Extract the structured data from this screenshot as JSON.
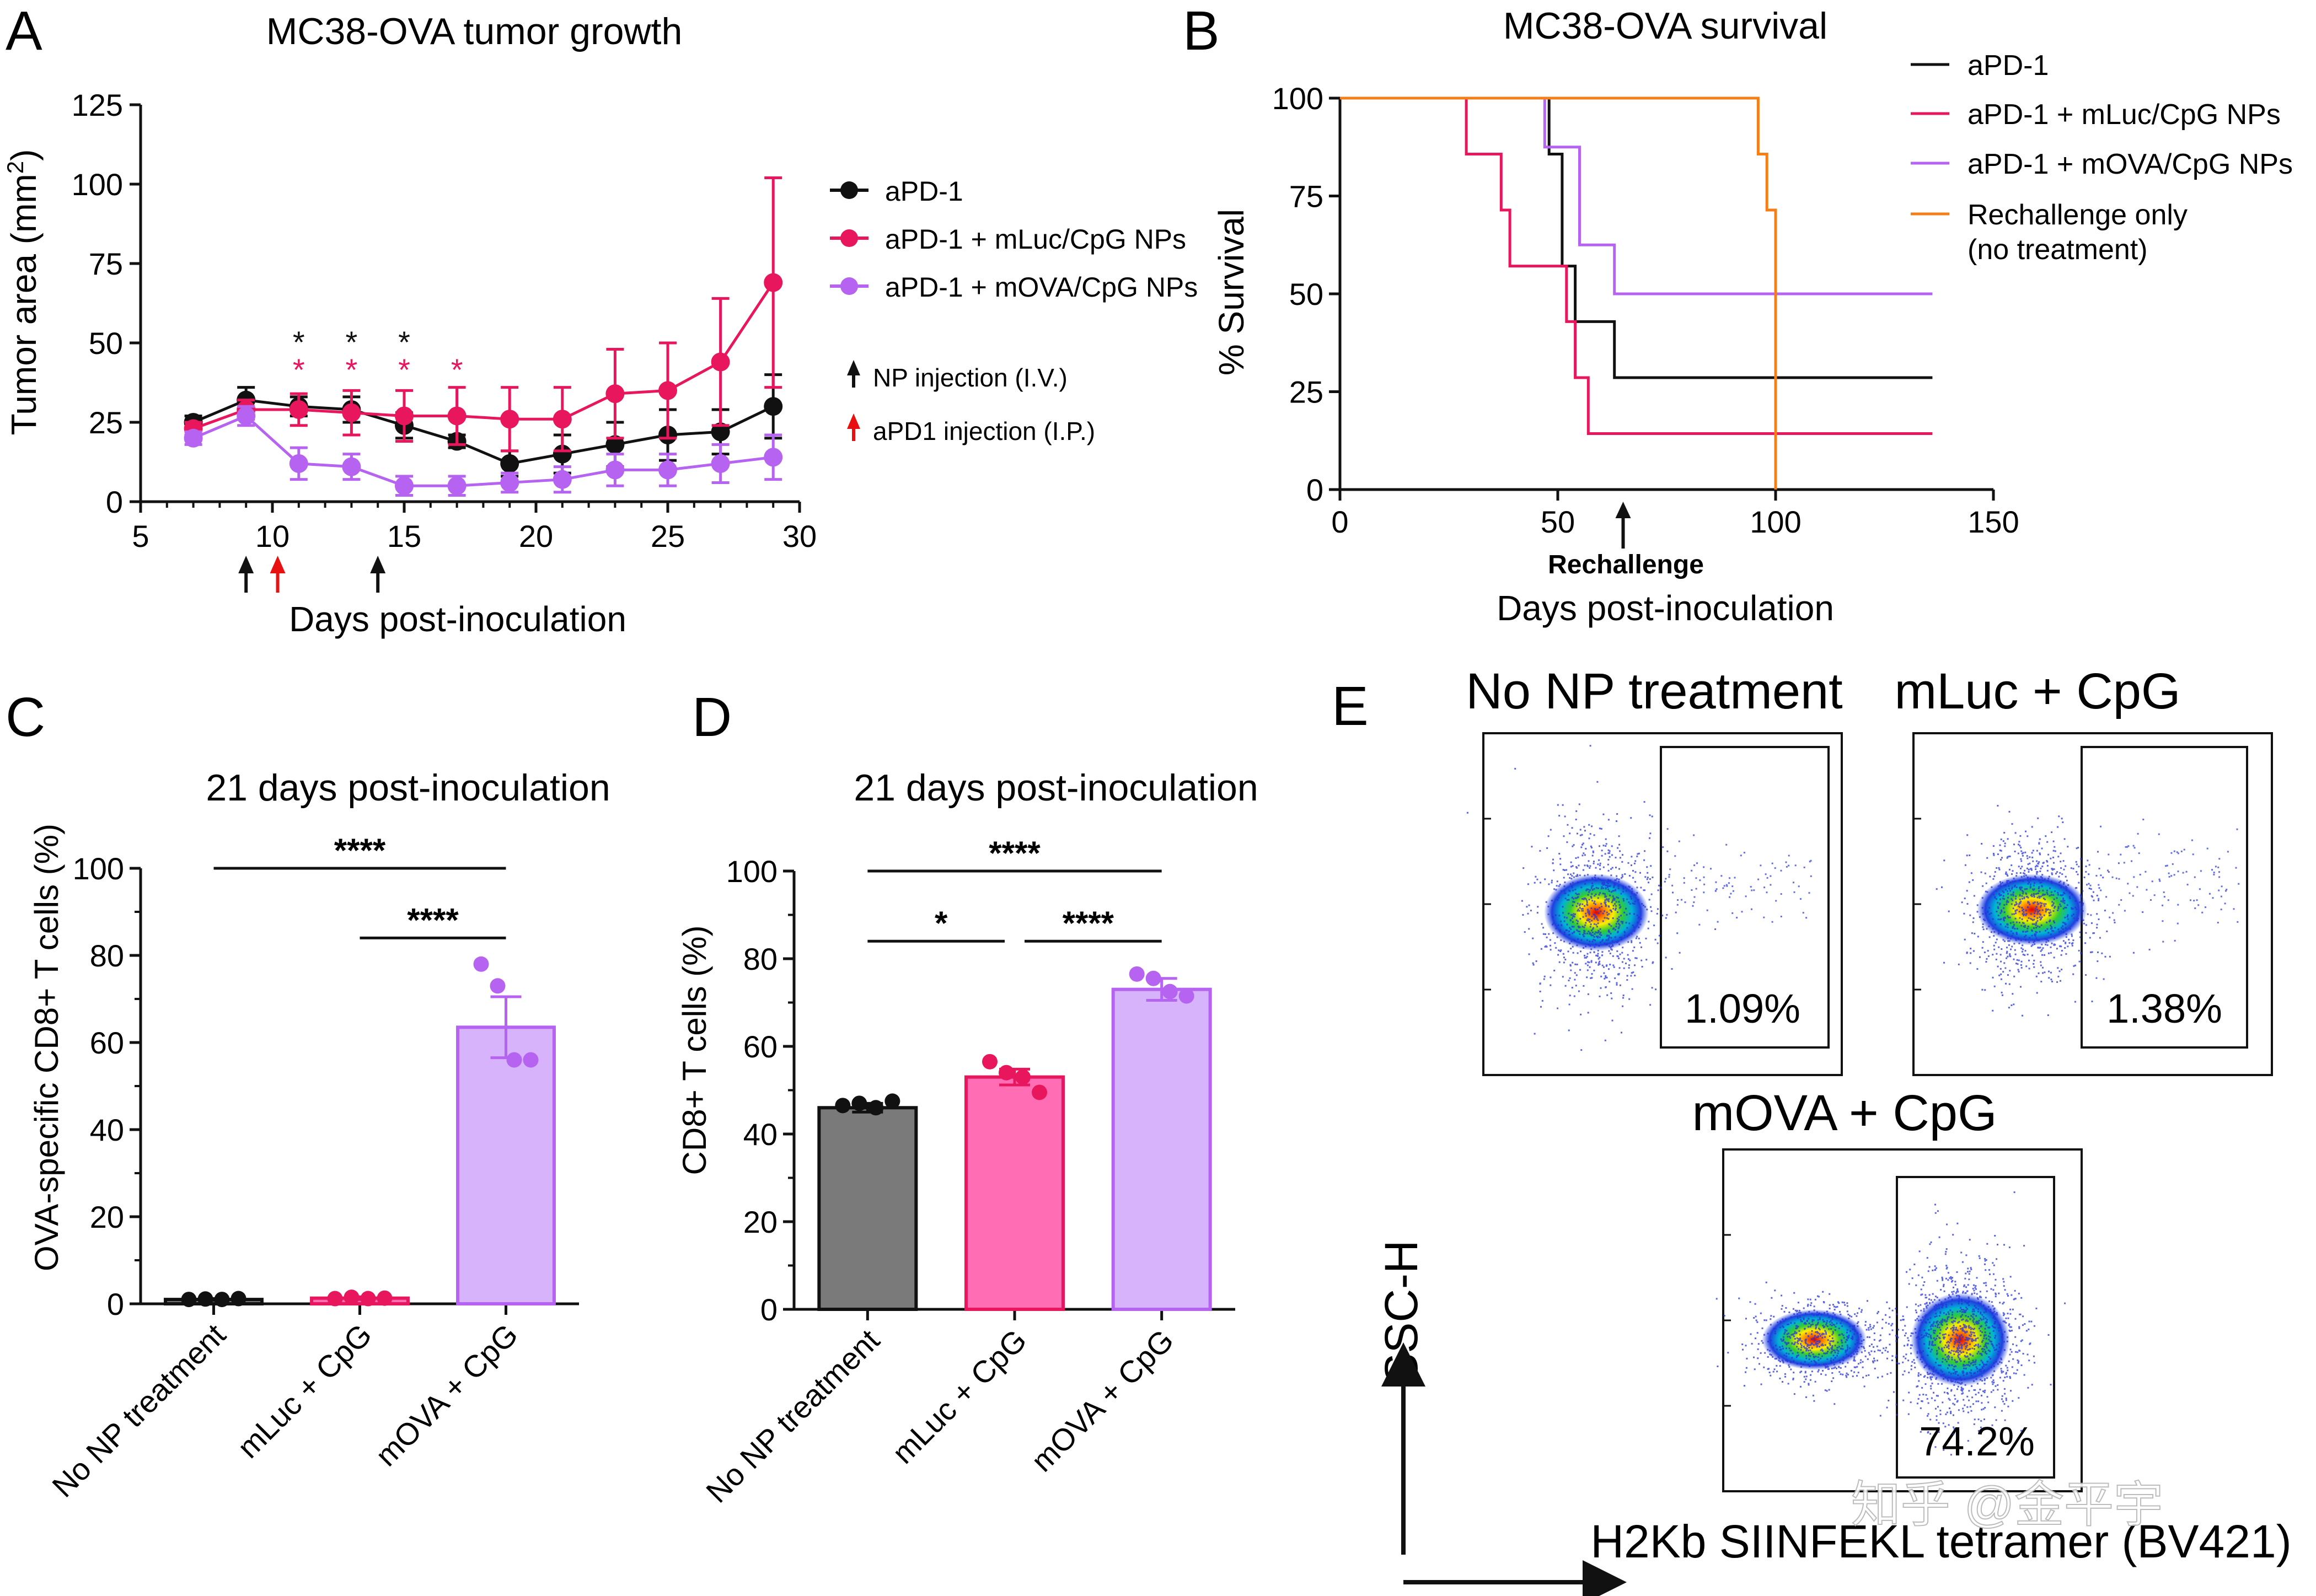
{
  "figure": {
    "panel_letters": [
      "A",
      "B",
      "C",
      "D",
      "E"
    ],
    "watermark": "知乎 @金平宇"
  },
  "chart_data": [
    {
      "panel": "A",
      "type": "line",
      "title": "MC38-OVA tumor growth",
      "xlabel": "Days post-inoculation",
      "ylabel": "Tumor area (mm",
      "ylabel_sup": "2",
      "ylabel_close": ")",
      "xlim": [
        5,
        30
      ],
      "ylim": [
        0,
        125
      ],
      "xticks": [
        5,
        10,
        15,
        20,
        25,
        30
      ],
      "yticks": [
        0,
        25,
        50,
        75,
        100,
        125
      ],
      "x": [
        7,
        9,
        11,
        13,
        15,
        17,
        19,
        21,
        23,
        25,
        27,
        29
      ],
      "series": [
        {
          "name": "aPD-1",
          "color": "#111111",
          "values": [
            25,
            32,
            30,
            29,
            24,
            19,
            12,
            15,
            18,
            21,
            22,
            30
          ],
          "errors": [
            2,
            4,
            3,
            4,
            4,
            2,
            4,
            6,
            7,
            8,
            7,
            10
          ]
        },
        {
          "name": "aPD-1 + mLuc/CpG NPs",
          "color": "#e8175d",
          "values": [
            23,
            29,
            29,
            28,
            27,
            27,
            26,
            26,
            34,
            35,
            44,
            69
          ],
          "errors": [
            2,
            3,
            5,
            7,
            8,
            9,
            10,
            10,
            14,
            15,
            20,
            33
          ]
        },
        {
          "name": "aPD-1 + mOVA/CpG NPs",
          "color": "#b563f0",
          "values": [
            20,
            27,
            12,
            11,
            5,
            5,
            6,
            7,
            10,
            10,
            12,
            14
          ],
          "errors": [
            2,
            3,
            5,
            4,
            3,
            3,
            3,
            4,
            5,
            5,
            6,
            7
          ]
        }
      ],
      "significance": [
        {
          "x": 11,
          "black": "*",
          "pink": "*"
        },
        {
          "x": 13,
          "black": "*",
          "pink": "*"
        },
        {
          "x": 15,
          "black": "*",
          "pink": "*"
        },
        {
          "x": 17,
          "black": "",
          "pink": "*"
        }
      ],
      "injection_markers": [
        {
          "day": 9,
          "kind": "NP"
        },
        {
          "day": 10.2,
          "kind": "aPD1"
        },
        {
          "day": 14,
          "kind": "NP"
        }
      ],
      "injection_legend": {
        "np": "NP injection (I.V.)",
        "apd1": "aPD1 injection (I.P.)"
      }
    },
    {
      "panel": "B",
      "type": "line",
      "subtype": "kaplan-meier",
      "title": "MC38-OVA survival",
      "xlabel": "Days post-inoculation",
      "ylabel": "% Survival",
      "xlim": [
        0,
        150
      ],
      "ylim": [
        0,
        100
      ],
      "xticks": [
        0,
        50,
        100,
        150
      ],
      "yticks": [
        0,
        25,
        50,
        75,
        100
      ],
      "rechallenge_day": 65,
      "rechallenge_label": "Rechallenge",
      "series": [
        {
          "name": "aPD-1",
          "color": "#111111",
          "steps": [
            [
              0,
              100
            ],
            [
              48,
              100
            ],
            [
              48,
              85.7
            ],
            [
              51,
              85.7
            ],
            [
              51,
              57.1
            ],
            [
              54,
              57.1
            ],
            [
              54,
              42.9
            ],
            [
              63,
              42.9
            ],
            [
              63,
              28.6
            ],
            [
              136,
              28.6
            ]
          ]
        },
        {
          "name": "aPD-1 + mLuc/CpG NPs",
          "color": "#e8175d",
          "steps": [
            [
              0,
              100
            ],
            [
              29,
              100
            ],
            [
              29,
              85.7
            ],
            [
              37,
              85.7
            ],
            [
              37,
              71.4
            ],
            [
              39,
              71.4
            ],
            [
              39,
              57.1
            ],
            [
              52,
              57.1
            ],
            [
              52,
              42.9
            ],
            [
              54,
              42.9
            ],
            [
              54,
              28.6
            ],
            [
              57,
              28.6
            ],
            [
              57,
              14.3
            ],
            [
              136,
              14.3
            ]
          ]
        },
        {
          "name": "aPD-1 + mOVA/CpG NPs",
          "color": "#b563f0",
          "steps": [
            [
              0,
              100
            ],
            [
              47,
              100
            ],
            [
              47,
              87.5
            ],
            [
              55,
              87.5
            ],
            [
              55,
              62.5
            ],
            [
              63,
              62.5
            ],
            [
              63,
              50
            ],
            [
              136,
              50
            ]
          ]
        },
        {
          "name": "Rechallenge only",
          "name_line2": "(no treatment)",
          "color": "#f57f17",
          "steps": [
            [
              0,
              100
            ],
            [
              96,
              100
            ],
            [
              96,
              85.7
            ],
            [
              98,
              85.7
            ],
            [
              98,
              71.4
            ],
            [
              100,
              71.4
            ],
            [
              100,
              0
            ]
          ]
        }
      ]
    },
    {
      "panel": "C",
      "type": "bar",
      "title": "21 days post-inoculation",
      "ylabel": "OVA-specific CD8+ T cells (%)",
      "ylim": [
        0,
        100
      ],
      "yticks": [
        0,
        20,
        40,
        60,
        80,
        100
      ],
      "categories": [
        "No NP treatment",
        "mLuc + CpG",
        "mOVA + CpG"
      ],
      "values": [
        1.0,
        1.3,
        63.5
      ],
      "sem": [
        0.2,
        0.3,
        7.0
      ],
      "colors": [
        "#7a7a7a",
        "#ff6eb4",
        "#d7b3fb"
      ],
      "edge_colors": [
        "#111111",
        "#e8175d",
        "#b563f0"
      ],
      "points": [
        [
          1.0,
          1.1,
          1.0,
          1.2
        ],
        [
          1.2,
          1.5,
          1.2,
          1.3
        ],
        [
          78,
          73,
          56,
          56
        ]
      ],
      "brackets": [
        {
          "from": 0,
          "to": 2,
          "label": "****",
          "level": 100
        },
        {
          "from": 1,
          "to": 2,
          "label": "****",
          "level": 84
        }
      ]
    },
    {
      "panel": "D",
      "type": "bar",
      "title": "21 days post-inoculation",
      "ylabel": "CD8+ T cells (%)",
      "ylim": [
        0,
        100
      ],
      "yticks": [
        0,
        20,
        40,
        60,
        80,
        100
      ],
      "categories": [
        "No NP treatment",
        "mLuc + CpG",
        "mOVA + CpG"
      ],
      "values": [
        46.0,
        53.0,
        73.0
      ],
      "sem": [
        1.0,
        1.8,
        2.5
      ],
      "colors": [
        "#7a7a7a",
        "#ff6eb4",
        "#d7b3fb"
      ],
      "edge_colors": [
        "#111111",
        "#e8175d",
        "#b563f0"
      ],
      "points": [
        [
          46.5,
          47.0,
          46.0,
          47.5
        ],
        [
          56.5,
          54.0,
          53.0,
          49.5
        ],
        [
          76.5,
          75.5,
          72.5,
          71.5
        ]
      ],
      "brackets": [
        {
          "from": 0,
          "to": 2,
          "label": "****",
          "level": 100
        },
        {
          "from": 0,
          "to": 1,
          "label": "*",
          "level": 84
        },
        {
          "from": 1,
          "to": 2,
          "label": "****",
          "level": 84
        }
      ]
    },
    {
      "panel": "E",
      "type": "scatter",
      "subtype": "flow-cytometry",
      "xlabel": "H2Kb SIINFEKL tetramer (BV421)",
      "ylabel": "SSC-H",
      "plots": [
        {
          "title": "No NP treatment",
          "gate_percent": "1.09%"
        },
        {
          "title": "mLuc + CpG",
          "gate_percent": "1.38%"
        },
        {
          "title": "mOVA + CpG",
          "gate_percent": "74.2%"
        }
      ]
    }
  ]
}
